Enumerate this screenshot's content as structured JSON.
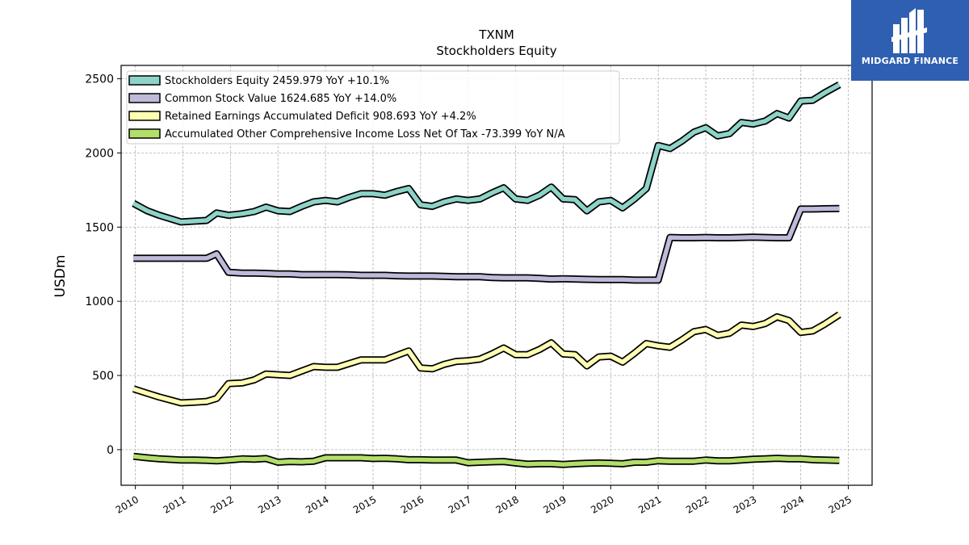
{
  "brand": {
    "name": "MIDGARD FINANCE",
    "bg_color": "#2f5fb0",
    "icon": "midgard-logo-icon"
  },
  "chart_data": {
    "type": "line",
    "title": "TXNM",
    "subtitle": "Stockholders  Equity",
    "ylabel": "USDm",
    "xlabel": "",
    "xlim": [
      2009.7,
      2025.5
    ],
    "ylim": [
      -240,
      2590
    ],
    "yticks": [
      0,
      500,
      1000,
      1500,
      2000,
      2500
    ],
    "xticks": [
      "2010",
      "2011",
      "2012",
      "2013",
      "2014",
      "2015",
      "2016",
      "2017",
      "2018",
      "2019",
      "2020",
      "2021",
      "2022",
      "2023",
      "2024",
      "2025"
    ],
    "grid": true,
    "legend_position": "top-left",
    "series": [
      {
        "name": "Stockholders Equity  2459.979 YoY +10.1%",
        "color": "#8dd3c7",
        "x": [
          2009.96,
          2010.25,
          2010.5,
          2010.96,
          2011.25,
          2011.5,
          2011.71,
          2011.96,
          2012.25,
          2012.5,
          2012.75,
          2013.0,
          2013.25,
          2013.5,
          2013.75,
          2014.0,
          2014.25,
          2014.5,
          2014.75,
          2015.0,
          2015.25,
          2015.5,
          2015.75,
          2016.0,
          2016.25,
          2016.5,
          2016.75,
          2017.0,
          2017.25,
          2017.5,
          2017.75,
          2018.0,
          2018.25,
          2018.5,
          2018.75,
          2019.0,
          2019.25,
          2019.5,
          2019.75,
          2020.0,
          2020.25,
          2020.5,
          2020.75,
          2021.0,
          2021.25,
          2021.5,
          2021.75,
          2022.0,
          2022.25,
          2022.5,
          2022.75,
          2023.0,
          2023.25,
          2023.5,
          2023.75,
          2024.0,
          2024.25,
          2024.5,
          2024.81
        ],
        "values": [
          1660,
          1610,
          1580,
          1535,
          1540,
          1545,
          1595,
          1580,
          1590,
          1605,
          1635,
          1610,
          1605,
          1640,
          1670,
          1680,
          1670,
          1700,
          1725,
          1725,
          1715,
          1740,
          1760,
          1650,
          1640,
          1670,
          1690,
          1680,
          1690,
          1730,
          1765,
          1690,
          1680,
          1715,
          1770,
          1690,
          1685,
          1610,
          1670,
          1680,
          1630,
          1690,
          1760,
          2050,
          2030,
          2080,
          2140,
          2170,
          2115,
          2130,
          2205,
          2195,
          2215,
          2265,
          2235,
          2350,
          2355,
          2405,
          2460
        ]
      },
      {
        "name": "Common Stock Value  1624.685 YoY +14.0%",
        "color": "#bebada",
        "x": [
          2009.96,
          2010.25,
          2010.5,
          2010.96,
          2011.25,
          2011.5,
          2011.71,
          2011.96,
          2012.25,
          2012.5,
          2012.75,
          2013.0,
          2013.25,
          2013.5,
          2013.75,
          2014.0,
          2014.25,
          2014.5,
          2014.75,
          2015.0,
          2015.25,
          2015.5,
          2015.75,
          2016.0,
          2016.25,
          2016.5,
          2016.75,
          2017.0,
          2017.25,
          2017.5,
          2017.75,
          2018.0,
          2018.25,
          2018.5,
          2018.75,
          2019.0,
          2019.25,
          2019.5,
          2019.75,
          2020.0,
          2020.25,
          2020.5,
          2020.75,
          2021.0,
          2021.25,
          2021.5,
          2021.75,
          2022.0,
          2022.25,
          2022.5,
          2022.75,
          2023.0,
          2023.25,
          2023.5,
          2023.75,
          2024.0,
          2024.25,
          2024.5,
          2024.81
        ],
        "values": [
          1290,
          1290,
          1290,
          1290,
          1290,
          1290,
          1320,
          1195,
          1190,
          1190,
          1188,
          1185,
          1185,
          1180,
          1180,
          1180,
          1180,
          1178,
          1175,
          1175,
          1175,
          1172,
          1170,
          1170,
          1170,
          1168,
          1165,
          1165,
          1165,
          1160,
          1158,
          1158,
          1158,
          1155,
          1150,
          1152,
          1150,
          1148,
          1146,
          1146,
          1146,
          1143,
          1143,
          1143,
          1430,
          1428,
          1428,
          1430,
          1428,
          1428,
          1430,
          1432,
          1430,
          1428,
          1428,
          1622,
          1622,
          1624,
          1625
        ]
      },
      {
        "name": "Retained Earnings Accumulated Deficit  908.693 YoY +4.2%",
        "color": "#ffffb3",
        "x": [
          2009.96,
          2010.25,
          2010.5,
          2010.96,
          2011.25,
          2011.5,
          2011.71,
          2011.96,
          2012.25,
          2012.5,
          2012.75,
          2013.0,
          2013.25,
          2013.5,
          2013.75,
          2014.0,
          2014.25,
          2014.5,
          2014.75,
          2015.0,
          2015.25,
          2015.5,
          2015.75,
          2016.0,
          2016.25,
          2016.5,
          2016.75,
          2017.0,
          2017.25,
          2017.5,
          2017.75,
          2018.0,
          2018.25,
          2018.5,
          2018.75,
          2019.0,
          2019.25,
          2019.5,
          2019.75,
          2020.0,
          2020.25,
          2020.5,
          2020.75,
          2021.0,
          2021.25,
          2021.5,
          2021.75,
          2022.0,
          2022.25,
          2022.5,
          2022.75,
          2023.0,
          2023.25,
          2023.5,
          2023.75,
          2024.0,
          2024.25,
          2024.5,
          2024.81
        ],
        "values": [
          410,
          380,
          355,
          315,
          320,
          325,
          345,
          445,
          450,
          470,
          510,
          505,
          500,
          530,
          560,
          555,
          555,
          580,
          605,
          605,
          605,
          635,
          665,
          550,
          545,
          575,
          595,
          600,
          610,
          645,
          685,
          640,
          640,
          675,
          720,
          645,
          640,
          565,
          625,
          630,
          590,
          650,
          715,
          700,
          690,
          740,
          795,
          810,
          770,
          785,
          840,
          830,
          850,
          895,
          870,
          790,
          800,
          845,
          910
        ]
      },
      {
        "name": "Accumulated Other Comprehensive Income Loss Net Of Tax  -73.399 YoY N/A",
        "color": "#b3de69",
        "x": [
          2009.96,
          2010.25,
          2010.5,
          2010.96,
          2011.25,
          2011.5,
          2011.71,
          2011.96,
          2012.25,
          2012.5,
          2012.75,
          2013.0,
          2013.25,
          2013.5,
          2013.75,
          2014.0,
          2014.25,
          2014.5,
          2014.75,
          2015.0,
          2015.25,
          2015.5,
          2015.75,
          2016.0,
          2016.25,
          2016.5,
          2016.75,
          2017.0,
          2017.25,
          2017.5,
          2017.75,
          2018.0,
          2018.25,
          2018.5,
          2018.75,
          2019.0,
          2019.25,
          2019.5,
          2019.75,
          2020.0,
          2020.25,
          2020.5,
          2020.75,
          2021.0,
          2021.25,
          2021.5,
          2021.75,
          2022.0,
          2022.25,
          2022.5,
          2022.75,
          2023.0,
          2023.25,
          2023.5,
          2023.75,
          2024.0,
          2024.25,
          2024.5,
          2024.81
        ],
        "values": [
          -45,
          -55,
          -62,
          -70,
          -70,
          -72,
          -75,
          -70,
          -62,
          -65,
          -60,
          -85,
          -80,
          -82,
          -78,
          -55,
          -55,
          -55,
          -55,
          -60,
          -58,
          -62,
          -68,
          -68,
          -70,
          -70,
          -70,
          -88,
          -85,
          -82,
          -80,
          -90,
          -98,
          -95,
          -95,
          -100,
          -95,
          -92,
          -90,
          -92,
          -95,
          -85,
          -85,
          -75,
          -78,
          -78,
          -78,
          -70,
          -75,
          -75,
          -70,
          -65,
          -62,
          -58,
          -62,
          -62,
          -68,
          -70,
          -73
        ]
      }
    ]
  }
}
